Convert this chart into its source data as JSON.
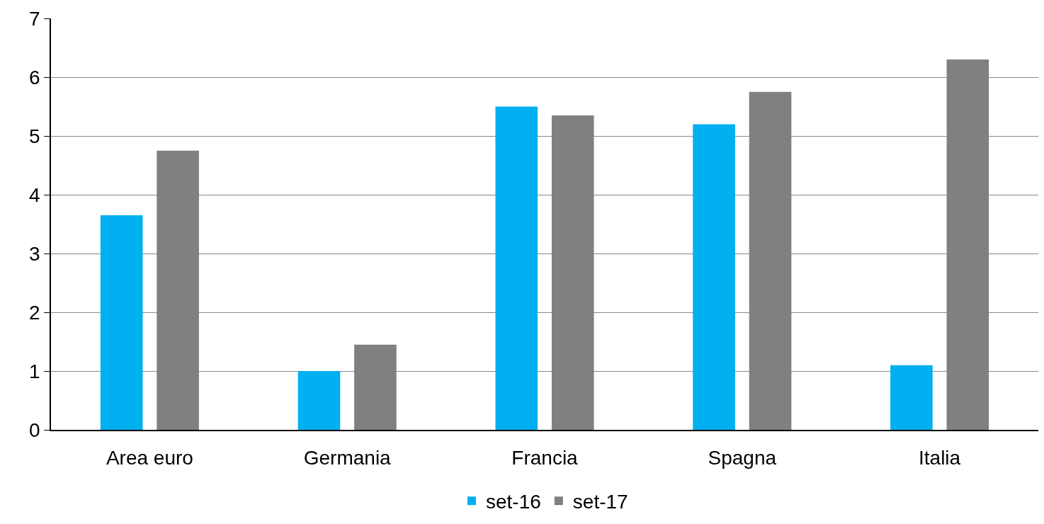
{
  "chart_data": {
    "type": "bar",
    "categories": [
      "Area euro",
      "Germania",
      "Francia",
      "Spagna",
      "Italia"
    ],
    "series": [
      {
        "name": "set-16",
        "color": "#00b0f0",
        "values": [
          3.65,
          1.0,
          5.5,
          5.2,
          1.1
        ]
      },
      {
        "name": "set-17",
        "color": "#808080",
        "values": [
          4.75,
          1.45,
          5.35,
          5.75,
          6.3
        ]
      }
    ],
    "ylim": [
      0,
      7
    ],
    "yticks": [
      0,
      1,
      2,
      3,
      4,
      5,
      6,
      7
    ],
    "grid": "y",
    "legend": "bottom"
  }
}
